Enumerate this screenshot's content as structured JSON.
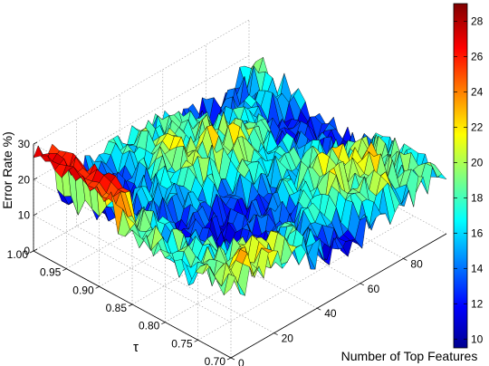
{
  "chart_data": {
    "type": "surface",
    "title": "",
    "xlabel": "Number of Top Features",
    "ylabel": "τ",
    "zlabel": "Error Rate %)",
    "x_range": [
      0,
      100
    ],
    "y_range": [
      0.7,
      1.0
    ],
    "z_range": [
      0,
      30
    ],
    "x_ticks": [
      "0",
      "20",
      "40",
      "60",
      "80"
    ],
    "y_ticks": [
      "1.00",
      "0.95",
      "0.90",
      "0.85",
      "0.80",
      "0.75",
      "0.70"
    ],
    "z_ticks": [
      "0",
      "10",
      "20",
      "30"
    ],
    "colorbar": {
      "range": [
        9.5,
        29
      ],
      "ticks": [
        "10",
        "12",
        "14",
        "16",
        "18",
        "20",
        "22",
        "24",
        "26",
        "28"
      ],
      "colormap": "jet"
    },
    "grid": true,
    "surface_summary": {
      "typical_error": 16,
      "min_error": 9.5,
      "max_error": 29
    }
  }
}
